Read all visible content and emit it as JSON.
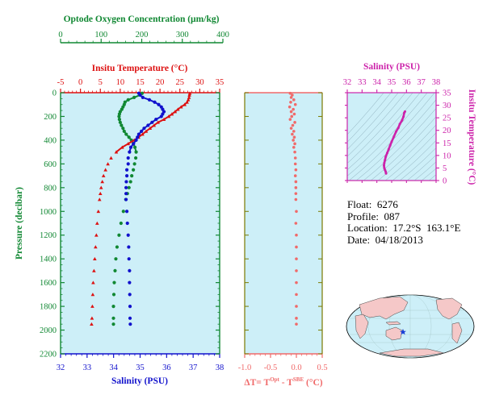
{
  "colors": {
    "temperature": "#dd1111",
    "salinity": "#1111cc",
    "oxygen": "#118833",
    "deltaT": "#f06a6a",
    "ts_diagram": "#cc22aa",
    "panel_bg": "#cdeff8",
    "land": "#f5c8c8",
    "ocean": "#cdeff8"
  },
  "info": {
    "float_line": "Float:  6276",
    "profile_line": "Profile:  087",
    "location_line": "Location:  17.2°S  163.1°E",
    "date_line": "Date:  04/18/2013"
  },
  "small_print": "",
  "chart_data": [
    {
      "type": "scatter",
      "panel": "profile",
      "grid": false,
      "axes": {
        "oxygen": {
          "label": "Optode Oxygen Concentration (µm/kg)",
          "range": [
            0,
            400
          ],
          "ticks": [
            "0",
            "100",
            "200",
            "300",
            "400"
          ],
          "position": "top-outer"
        },
        "temperature": {
          "label": "Insitu Temperature (°C)",
          "range": [
            -5,
            35
          ],
          "ticks": [
            "-5",
            "0",
            "5",
            "10",
            "15",
            "20",
            "25",
            "30",
            "35"
          ],
          "position": "top"
        },
        "salinity": {
          "label": "Salinity (PSU)",
          "range": [
            32,
            38
          ],
          "ticks": [
            "32",
            "33",
            "34",
            "35",
            "36",
            "37",
            "38"
          ],
          "position": "bottom"
        },
        "pressure": {
          "label": "Pressure (decibar)",
          "range": [
            0,
            2200
          ],
          "ticks": [
            "0",
            "200",
            "400",
            "600",
            "800",
            "1000",
            "1200",
            "1400",
            "1600",
            "1800",
            "2000",
            "2200"
          ],
          "reversed": true
        }
      },
      "series": [
        {
          "name": "Insitu Temperature (°C)",
          "marker": "triangle",
          "axis": "temperature",
          "pressure": [
            5,
            20,
            40,
            60,
            80,
            100,
            120,
            140,
            160,
            180,
            200,
            225,
            250,
            275,
            300,
            325,
            350,
            375,
            400,
            430,
            460,
            500,
            550,
            600,
            650,
            700,
            750,
            800,
            850,
            900,
            1000,
            1100,
            1200,
            1300,
            1400,
            1500,
            1600,
            1700,
            1800,
            1900,
            1950
          ],
          "values": [
            27.5,
            27.4,
            27.3,
            27.1,
            26.8,
            26.2,
            25.3,
            24.5,
            23.8,
            23.0,
            22.2,
            21.0,
            19.5,
            18.5,
            17.5,
            16.5,
            15.6,
            14.6,
            13.5,
            12.0,
            10.5,
            9.0,
            7.7,
            6.9,
            6.3,
            5.8,
            5.5,
            5.2,
            5.0,
            4.8,
            4.5,
            4.2,
            4.0,
            3.8,
            3.6,
            3.4,
            3.2,
            3.1,
            3.0,
            2.9,
            2.8
          ]
        },
        {
          "name": "Salinity (PSU)",
          "marker": "circle",
          "axis": "salinity",
          "pressure": [
            5,
            20,
            40,
            60,
            80,
            100,
            120,
            140,
            160,
            180,
            200,
            225,
            250,
            275,
            300,
            325,
            350,
            375,
            400,
            430,
            460,
            500,
            550,
            600,
            650,
            700,
            750,
            800,
            850,
            900,
            1000,
            1100,
            1200,
            1300,
            1400,
            1500,
            1600,
            1700,
            1800,
            1900,
            1950
          ],
          "values": [
            34.95,
            35.0,
            35.1,
            35.35,
            35.55,
            35.7,
            35.8,
            35.85,
            35.9,
            35.85,
            35.8,
            35.6,
            35.45,
            35.3,
            35.15,
            35.05,
            34.95,
            34.9,
            34.85,
            34.75,
            34.65,
            34.6,
            34.55,
            34.55,
            34.5,
            34.5,
            34.48,
            34.47,
            34.47,
            34.47,
            34.5,
            34.52,
            34.55,
            34.57,
            34.58,
            34.6,
            34.6,
            34.61,
            34.62,
            34.62,
            34.63
          ]
        },
        {
          "name": "Optode Oxygen Concentration (µm/kg)",
          "marker": "circle",
          "axis": "oxygen",
          "pressure": [
            5,
            20,
            40,
            60,
            80,
            100,
            120,
            140,
            160,
            180,
            200,
            225,
            250,
            275,
            300,
            325,
            350,
            375,
            400,
            430,
            460,
            500,
            550,
            600,
            650,
            700,
            750,
            800,
            850,
            900,
            1000,
            1100,
            1200,
            1300,
            1400,
            1500,
            1600,
            1700,
            1800,
            1900,
            1950
          ],
          "values": [
            205,
            200,
            185,
            170,
            162,
            160,
            157,
            154,
            150,
            148,
            147,
            148,
            150,
            153,
            157,
            160,
            165,
            172,
            178,
            183,
            187,
            190,
            189,
            186,
            183,
            179,
            176,
            172,
            168,
            164,
            158,
            152,
            147,
            142,
            139,
            137,
            135,
            134,
            133,
            133,
            133
          ]
        }
      ]
    },
    {
      "type": "scatter",
      "panel": "delta-t",
      "grid": false,
      "axes": {
        "x": {
          "label": "ΔT= T^Opt - T^SBE (°C)",
          "label_main": "ΔT= T",
          "label_sup1": "Opt",
          "label_mid": " - T",
          "label_sup2": "SBE",
          "label_end": " (°C)",
          "range": [
            -1.0,
            0.5
          ],
          "ticks": [
            "-1.0",
            "-0.5",
            "0.0",
            "0.5"
          ]
        },
        "y": {
          "range": [
            0,
            2200
          ],
          "reversed": true
        }
      },
      "series": [
        {
          "marker": "circle",
          "pressure": [
            5,
            20,
            40,
            60,
            80,
            100,
            120,
            140,
            160,
            180,
            200,
            225,
            250,
            275,
            300,
            325,
            350,
            375,
            400,
            430,
            460,
            500,
            550,
            600,
            650,
            700,
            750,
            800,
            850,
            900,
            1000,
            1100,
            1200,
            1300,
            1400,
            1500,
            1600,
            1700,
            1800,
            1900,
            1950
          ],
          "values": [
            -0.12,
            -0.08,
            -0.1,
            -0.05,
            -0.11,
            -0.02,
            -0.13,
            -0.06,
            -0.1,
            -0.04,
            -0.09,
            -0.12,
            -0.03,
            -0.07,
            -0.1,
            -0.05,
            -0.08,
            -0.04,
            -0.06,
            -0.03,
            -0.05,
            -0.03,
            -0.02,
            -0.02,
            -0.01,
            -0.02,
            -0.01,
            -0.01,
            -0.01,
            -0.01,
            0.0,
            -0.01,
            0.0,
            0.0,
            0.0,
            0.0,
            0.0,
            0.0,
            0.0,
            0.0,
            0.0
          ]
        }
      ]
    },
    {
      "type": "scatter",
      "panel": "t-s-diagram",
      "grid": false,
      "axes": {
        "x": {
          "label": "Salinity (PSU)",
          "range": [
            32,
            38
          ],
          "ticks": [
            "32",
            "33",
            "34",
            "35",
            "36",
            "37",
            "38"
          ]
        },
        "y": {
          "label": "Insitu Temperature (°C)",
          "range": [
            0,
            35
          ],
          "ticks": [
            "0",
            "5",
            "10",
            "15",
            "20",
            "25",
            "30",
            "35"
          ]
        }
      },
      "series": [
        {
          "marker": "circle",
          "salinity": [
            35.9,
            35.85,
            35.8,
            35.7,
            35.55,
            35.45,
            35.3,
            35.15,
            35.0,
            34.9,
            34.8,
            34.7,
            34.6,
            34.55,
            34.5,
            34.48,
            34.5,
            34.55,
            34.6,
            34.62
          ],
          "temperature": [
            27.5,
            27.0,
            25.5,
            24.0,
            22.5,
            21.0,
            19.5,
            17.5,
            15.5,
            14.0,
            12.5,
            11.0,
            9.5,
            8.2,
            7.0,
            6.0,
            5.0,
            4.2,
            3.5,
            2.8
          ]
        }
      ]
    },
    {
      "type": "map",
      "panel": "location",
      "marker": {
        "lat": -17.2,
        "lon": 163.1,
        "symbol": "star"
      }
    }
  ]
}
